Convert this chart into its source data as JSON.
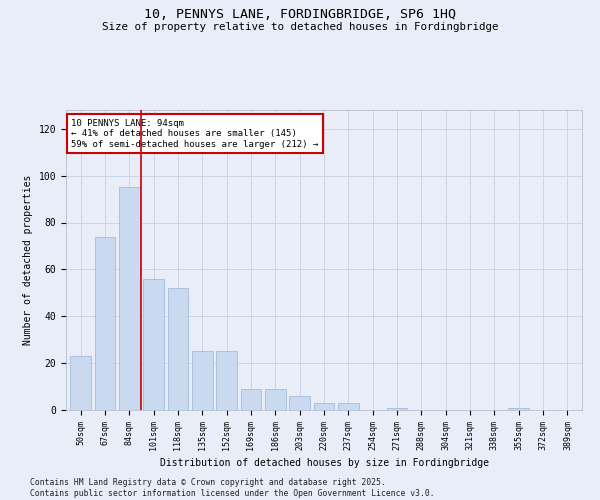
{
  "title1": "10, PENNYS LANE, FORDINGBRIDGE, SP6 1HQ",
  "title2": "Size of property relative to detached houses in Fordingbridge",
  "xlabel": "Distribution of detached houses by size in Fordingbridge",
  "ylabel": "Number of detached properties",
  "categories": [
    "50sqm",
    "67sqm",
    "84sqm",
    "101sqm",
    "118sqm",
    "135sqm",
    "152sqm",
    "169sqm",
    "186sqm",
    "203sqm",
    "220sqm",
    "237sqm",
    "254sqm",
    "271sqm",
    "288sqm",
    "304sqm",
    "321sqm",
    "338sqm",
    "355sqm",
    "372sqm",
    "389sqm"
  ],
  "values": [
    23,
    74,
    95,
    56,
    52,
    25,
    25,
    9,
    9,
    6,
    3,
    3,
    0,
    1,
    0,
    0,
    0,
    0,
    1,
    0,
    0
  ],
  "bar_color": "#c8d9f0",
  "bar_edge_color": "#9ab5d5",
  "grid_color": "#ccd5e5",
  "background_color": "#e8edf7",
  "vline_x": 2.5,
  "vline_color": "#cc0000",
  "annotation_text": "10 PENNYS LANE: 94sqm\n← 41% of detached houses are smaller (145)\n59% of semi-detached houses are larger (212) →",
  "annotation_box_facecolor": "#ffffff",
  "annotation_box_edgecolor": "#cc0000",
  "ylim": [
    0,
    128
  ],
  "yticks": [
    0,
    20,
    40,
    60,
    80,
    100,
    120
  ],
  "footer": "Contains HM Land Registry data © Crown copyright and database right 2025.\nContains public sector information licensed under the Open Government Licence v3.0."
}
